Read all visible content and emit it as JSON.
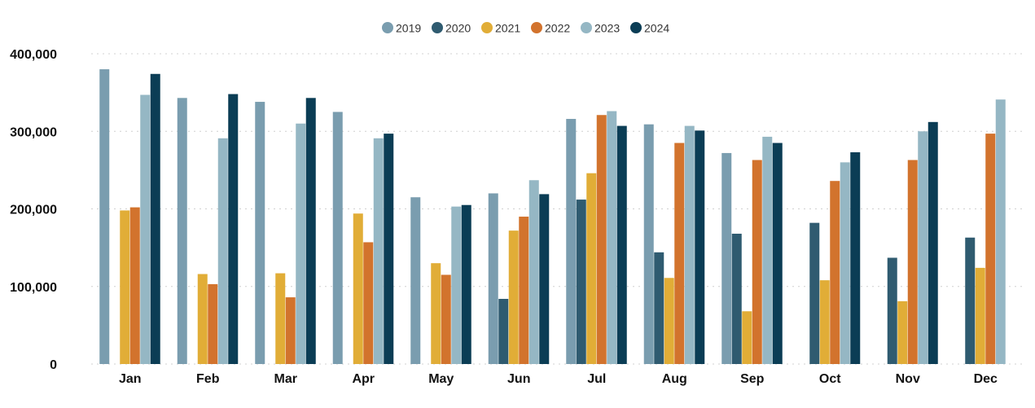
{
  "chart_data": {
    "type": "bar",
    "categories": [
      "Jan",
      "Feb",
      "Mar",
      "Apr",
      "May",
      "Jun",
      "Jul",
      "Aug",
      "Sep",
      "Oct",
      "Nov",
      "Dec"
    ],
    "series": [
      {
        "name": "2019",
        "color": "#7A9DAF",
        "values": [
          380000,
          343000,
          338000,
          325000,
          215000,
          220000,
          316000,
          309000,
          272000,
          null,
          null,
          null
        ]
      },
      {
        "name": "2020",
        "color": "#2F5B70",
        "values": [
          null,
          null,
          null,
          null,
          null,
          84000,
          212000,
          144000,
          168000,
          182000,
          137000,
          163000
        ]
      },
      {
        "name": "2021",
        "color": "#E1AD37",
        "values": [
          198000,
          116000,
          117000,
          194000,
          130000,
          172000,
          246000,
          111000,
          68000,
          108000,
          81000,
          124000
        ]
      },
      {
        "name": "2022",
        "color": "#D2732D",
        "values": [
          202000,
          103000,
          86000,
          157000,
          115000,
          190000,
          321000,
          285000,
          263000,
          236000,
          263000,
          297000
        ]
      },
      {
        "name": "2023",
        "color": "#95B7C4",
        "values": [
          347000,
          291000,
          310000,
          291000,
          203000,
          237000,
          326000,
          307000,
          293000,
          260000,
          300000,
          341000
        ]
      },
      {
        "name": "2024",
        "color": "#0B3D55",
        "values": [
          374000,
          348000,
          343000,
          297000,
          205000,
          219000,
          307000,
          301000,
          285000,
          273000,
          312000,
          null
        ]
      }
    ],
    "yticks": [
      "400,000",
      "300,000",
      "200,000",
      "100,000",
      "0"
    ],
    "ylim": [
      0,
      400000
    ],
    "grid": true,
    "legend_position": "top-center"
  }
}
